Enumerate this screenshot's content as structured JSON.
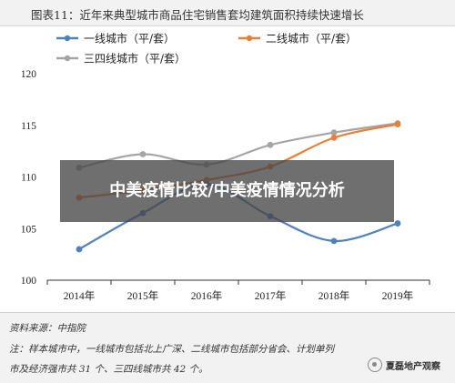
{
  "header": {
    "title": "图表11：近年来典型城市商品住宅销售套均建筑面积持续快速增长"
  },
  "overlay": {
    "text": "中美疫情比较/中美疫情情况分析"
  },
  "footer": {
    "source": "资料来源：中指院",
    "note_line1": "注：样本城市中，一线城市包括北上广深、二线城市包括部分省会、计划单列",
    "note_line2": "市及经济强市共 31 个、三四线城市共 42 个。",
    "brand": "夏磊地产观察"
  },
  "chart_data": {
    "type": "line",
    "title": "",
    "xlabel": "",
    "ylabel": "",
    "x": [
      "2014年",
      "2015年",
      "2016年",
      "2017年",
      "2018年",
      "2019年"
    ],
    "ylim": [
      100,
      120
    ],
    "yticks": [
      100,
      105,
      110,
      115,
      120
    ],
    "grid": false,
    "legend": "top",
    "series": [
      {
        "name": "一线城市（平/套）",
        "color": "#4f81bd",
        "values": [
          103.0,
          106.5,
          109.3,
          106.2,
          103.8,
          105.5
        ]
      },
      {
        "name": "二线城市（平/套）",
        "color": "#e8803a",
        "values": [
          108.0,
          108.7,
          109.7,
          111.0,
          113.8,
          115.1
        ]
      },
      {
        "name": "三四线城市（平/套）",
        "color": "#a5a5a5",
        "values": [
          110.9,
          112.2,
          111.2,
          113.1,
          114.3,
          115.2
        ]
      }
    ]
  }
}
